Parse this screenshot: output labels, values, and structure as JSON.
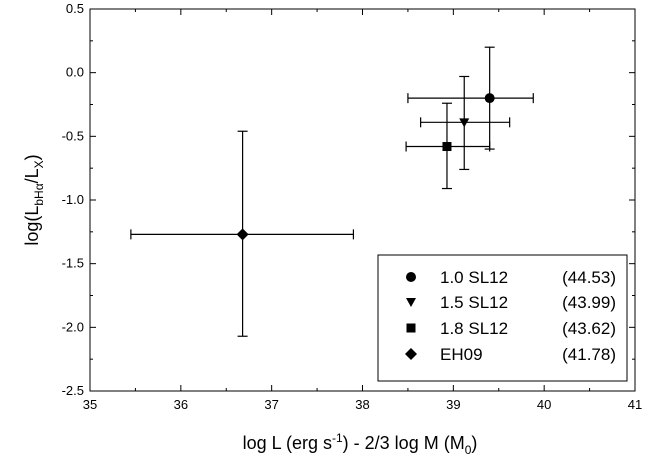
{
  "chart_data": {
    "type": "scatter",
    "xlabel": {
      "main": "log L (erg s",
      "sup": "-1",
      "mid": ") - 2/3 log M (M",
      "sub": "0",
      "end": ")"
    },
    "ylabel": {
      "main": "log(L",
      "sub1": "bHα",
      "mid": "/L",
      "sub2": "X",
      "end": ")"
    },
    "xlim": [
      35,
      41
    ],
    "ylim": [
      -2.5,
      0.5
    ],
    "xticks": [
      "35",
      "36",
      "37",
      "38",
      "39",
      "40",
      "41"
    ],
    "yticks": [
      "0.5",
      "0.0",
      "-0.5",
      "-1.0",
      "-1.5",
      "-2.0",
      "-2.5"
    ],
    "grid": false,
    "legend_position": "bottom-right",
    "series": [
      {
        "label": "1.0 SL12",
        "value": "(44.53)",
        "marker": "circle",
        "x": 39.4,
        "y": -0.2,
        "xerr": [
          0.9,
          0.48
        ],
        "yerr": [
          0.4,
          0.4
        ]
      },
      {
        "label": "1.5 SL12",
        "value": "(43.99)",
        "marker": "triangle-down",
        "x": 39.12,
        "y": -0.39,
        "xerr": [
          0.48,
          0.5
        ],
        "yerr": [
          0.37,
          0.36
        ]
      },
      {
        "label": "1.8 SL12",
        "value": "(43.62)",
        "marker": "square",
        "x": 38.93,
        "y": -0.58,
        "xerr": [
          0.45,
          0.47
        ],
        "yerr": [
          0.33,
          0.34
        ]
      },
      {
        "label": "EH09",
        "value": "(41.78)",
        "marker": "diamond",
        "x": 36.68,
        "y": -1.27,
        "xerr": [
          1.23,
          1.22
        ],
        "yerr": [
          0.8,
          0.81
        ]
      }
    ]
  }
}
